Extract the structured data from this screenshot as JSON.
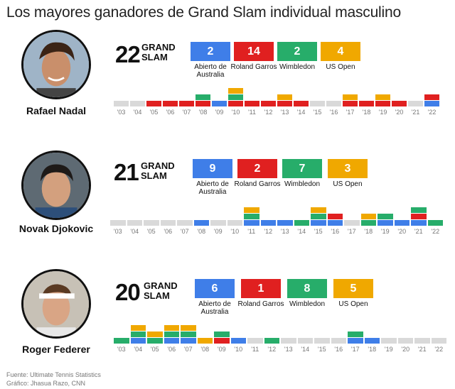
{
  "title": "Los mayores ganadores de Grand Slam individual masculino",
  "grand_slam_label_line1": "GRAND",
  "grand_slam_label_line2": "SLAM",
  "colors": {
    "australia": "#3f7ee8",
    "roland_garros": "#e02020",
    "wimbledon": "#27ad6a",
    "us_open": "#f0a800",
    "empty": "#d9d9d9"
  },
  "slam_labels": [
    "Abierto de Australia",
    "Roland Garros",
    "Wimbledon",
    "US Open"
  ],
  "year_labels": [
    "'03",
    "'04",
    "'05",
    "'06",
    "'07",
    "'08",
    "'09",
    "'10",
    "'11",
    "'12",
    "'13",
    "'14",
    "'15",
    "'16",
    "'17",
    "'18",
    "'19",
    "'20",
    "'21",
    "'22"
  ],
  "players": [
    {
      "name": "Rafael Nadal",
      "total": "22",
      "counts": [
        "2",
        "14",
        "2",
        "4"
      ]
    },
    {
      "name": "Novak Djokovic",
      "total": "21",
      "counts": [
        "9",
        "2",
        "7",
        "3"
      ]
    },
    {
      "name": "Roger Federer",
      "total": "20",
      "counts": [
        "6",
        "1",
        "8",
        "5"
      ]
    }
  ],
  "footer": {
    "source": "Fuente: Ultimate Tennis Statistics",
    "credit": "Gráfico: Jhasua Razo, CNN"
  },
  "chart_data": {
    "type": "bar",
    "title": "Los mayores ganadores de Grand Slam individual masculino",
    "categories": [
      "'03",
      "'04",
      "'05",
      "'06",
      "'07",
      "'08",
      "'09",
      "'10",
      "'11",
      "'12",
      "'13",
      "'14",
      "'15",
      "'16",
      "'17",
      "'18",
      "'19",
      "'20",
      "'21",
      "'22"
    ],
    "players": [
      {
        "name": "Rafael Nadal",
        "total": 22,
        "titles_by_year": [
          [],
          [],
          [
            "roland_garros"
          ],
          [
            "roland_garros"
          ],
          [
            "roland_garros"
          ],
          [
            "roland_garros",
            "wimbledon"
          ],
          [
            "australia"
          ],
          [
            "roland_garros",
            "wimbledon",
            "us_open"
          ],
          [
            "roland_garros"
          ],
          [
            "roland_garros"
          ],
          [
            "roland_garros",
            "us_open"
          ],
          [
            "roland_garros"
          ],
          [],
          [],
          [
            "roland_garros",
            "us_open"
          ],
          [
            "roland_garros"
          ],
          [
            "roland_garros",
            "us_open"
          ],
          [
            "roland_garros"
          ],
          [],
          [
            "australia",
            "roland_garros"
          ]
        ]
      },
      {
        "name": "Novak Djokovic",
        "total": 21,
        "titles_by_year": [
          [],
          [],
          [],
          [],
          [],
          [
            "australia"
          ],
          [],
          [],
          [
            "australia",
            "wimbledon",
            "us_open"
          ],
          [
            "australia"
          ],
          [
            "australia"
          ],
          [
            "wimbledon"
          ],
          [
            "australia",
            "wimbledon",
            "us_open"
          ],
          [
            "australia",
            "roland_garros"
          ],
          [],
          [
            "wimbledon",
            "us_open"
          ],
          [
            "australia",
            "wimbledon"
          ],
          [
            "australia"
          ],
          [
            "australia",
            "roland_garros",
            "wimbledon"
          ],
          [
            "wimbledon"
          ]
        ]
      },
      {
        "name": "Roger Federer",
        "total": 20,
        "titles_by_year": [
          [
            "wimbledon"
          ],
          [
            "australia",
            "wimbledon",
            "us_open"
          ],
          [
            "wimbledon",
            "us_open"
          ],
          [
            "australia",
            "wimbledon",
            "us_open"
          ],
          [
            "australia",
            "wimbledon",
            "us_open"
          ],
          [
            "us_open"
          ],
          [
            "roland_garros",
            "wimbledon"
          ],
          [
            "australia"
          ],
          [],
          [
            "wimbledon"
          ],
          [],
          [],
          [],
          [],
          [
            "australia",
            "wimbledon"
          ],
          [
            "australia"
          ],
          [],
          [],
          [],
          []
        ]
      }
    ]
  }
}
